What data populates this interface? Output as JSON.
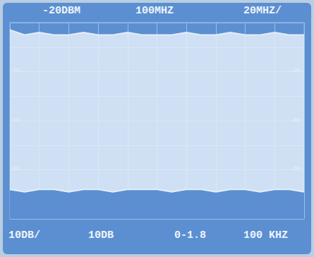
{
  "chart_data": {
    "type": "line",
    "header": [
      "-20DBM",
      "100MHZ",
      "20MHZ/"
    ],
    "footer": [
      "10DB/",
      "10DB",
      "0-1.8",
      "100 KHZ"
    ],
    "left_labels": [
      "75",
      "50",
      "25"
    ],
    "right_labels": [
      "-20",
      "-40",
      "-60"
    ],
    "x": [
      0,
      10,
      20,
      30,
      40,
      50,
      60,
      70,
      80,
      90,
      100,
      110,
      120,
      130,
      140,
      150,
      160,
      170,
      180,
      190,
      200
    ],
    "series": [
      {
        "color": "#e4eefa",
        "values": [
          -23,
          -25,
          -24,
          -25,
          -25,
          -24,
          -25,
          -25,
          -24,
          -25,
          -25,
          -25,
          -24,
          -25,
          -25,
          -24,
          -25,
          -25,
          -24,
          -25,
          -25
        ]
      },
      {
        "color": "#e4eefa",
        "values": [
          -88,
          -89,
          -88,
          -88,
          -89,
          -88,
          -88,
          -89,
          -88,
          -88,
          -88,
          -89,
          -88,
          -88,
          -89,
          -88,
          -88,
          -89,
          -88,
          -88,
          -89
        ]
      }
    ],
    "xlim": [
      0,
      200
    ],
    "xticks": [
      0,
      20,
      40,
      60,
      80,
      100,
      120,
      140,
      160,
      180,
      200
    ],
    "ylim": [
      -100,
      -20
    ],
    "yticks": [
      -100,
      -90,
      -80,
      -70,
      -60,
      -50,
      -40,
      -30,
      -20
    ],
    "grid": true,
    "tick_labels": false
  }
}
